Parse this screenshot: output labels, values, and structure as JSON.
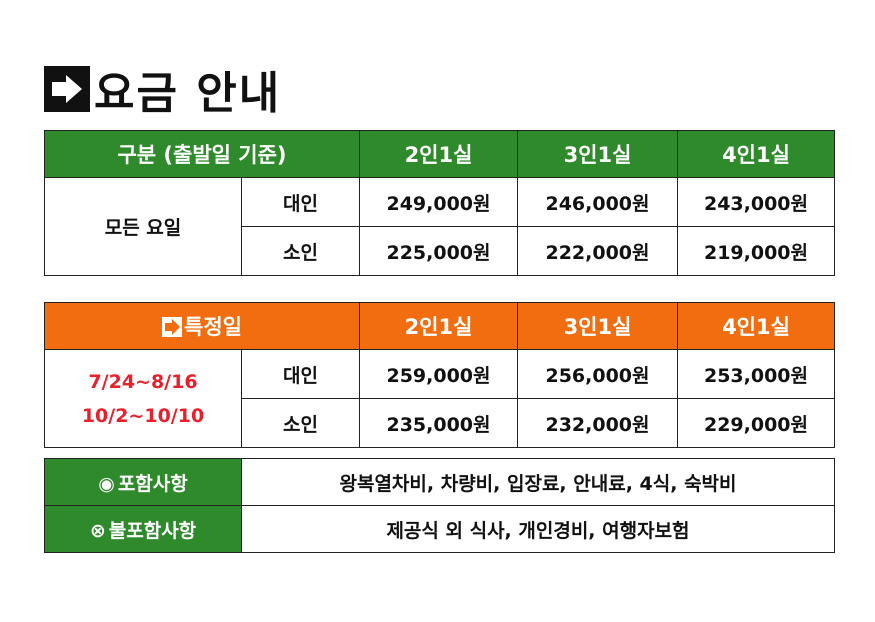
{
  "title": "요금 안내",
  "price_table": {
    "header": [
      "구분 (출발일 기준)",
      "2인1실",
      "3인1실",
      "4인1실"
    ],
    "group_label": "모든 요일",
    "rows": [
      {
        "type": "대인",
        "prices": [
          "249,000원",
          "246,000원",
          "243,000원"
        ]
      },
      {
        "type": "소인",
        "prices": [
          "225,000원",
          "222,000원",
          "219,000원"
        ]
      }
    ]
  },
  "special_table": {
    "header": [
      "특정일",
      "2인1실",
      "3인1실",
      "4인1실"
    ],
    "dates": [
      "7/24~8/16",
      "10/2~10/10"
    ],
    "rows": [
      {
        "type": "대인",
        "prices": [
          "259,000원",
          "256,000원",
          "253,000원"
        ]
      },
      {
        "type": "소인",
        "prices": [
          "235,000원",
          "232,000원",
          "229,000원"
        ]
      }
    ]
  },
  "inclusions": {
    "included_label": "포함사항",
    "included_value": "왕복열차비, 차량비, 입장료, 안내료, 4식, 숙박비",
    "excluded_label": "불포함사항",
    "excluded_value": "제공식 외 식사, 개인경비, 여행자보험"
  }
}
